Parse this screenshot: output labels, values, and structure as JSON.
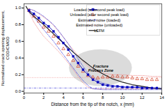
{
  "chart_data": {
    "type": "line",
    "xlabel": "Distance from the tip of the notch, x (mm)",
    "ylabel": "Normalised crack opening displacement,\nCOD/CMOD",
    "xlim": [
      0,
      14
    ],
    "ylim": [
      -0.02,
      1.05
    ],
    "xticks": [
      0,
      2,
      4,
      6,
      8,
      10,
      12,
      14
    ],
    "yticks": [
      {
        "value": 0.0,
        "label": "0.0"
      },
      0.2,
      0.4,
      0.6,
      0.8,
      {
        "value": 1.0,
        "label": "1.0"
      }
    ],
    "grid": false,
    "legend": "upper right",
    "series": [
      {
        "name": "Loaded (at second peak load)",
        "type": "line",
        "color": "#0000bb",
        "marker": "square",
        "line_style": "solid",
        "x": [
          0.5,
          1.0,
          1.5,
          2.0,
          2.5,
          3.0,
          3.5,
          4.0,
          4.5,
          5.0,
          5.5,
          6.0,
          6.5,
          7.0,
          7.5,
          8.0,
          8.5,
          9.0,
          9.5,
          10.0,
          10.5,
          11.0,
          11.5,
          12.0,
          12.5,
          13.0,
          13.5
        ],
        "values": [
          0.97,
          0.93,
          0.88,
          0.82,
          0.78,
          0.72,
          0.65,
          0.58,
          0.5,
          0.42,
          0.34,
          0.26,
          0.2,
          0.14,
          0.11,
          0.08,
          0.07,
          0.06,
          0.06,
          0.05,
          0.05,
          0.05,
          0.05,
          0.04,
          0.04,
          0.04,
          0.04
        ]
      },
      {
        "name": "Unloaded (after second peak load)",
        "type": "scatter",
        "color": "#cc2200",
        "marker": "triangle-open",
        "line_style": "none",
        "x": [
          0.5,
          1.0,
          1.5,
          2.0,
          2.5,
          3.0,
          3.5,
          4.0,
          4.5,
          5.0,
          5.5,
          6.0,
          6.5,
          7.0,
          7.5,
          8.0,
          8.5,
          9.0,
          9.5,
          10.0,
          10.5,
          11.0,
          11.5,
          12.0,
          12.5,
          13.0,
          13.5
        ],
        "values": [
          0.97,
          0.9,
          0.84,
          0.77,
          0.72,
          0.66,
          0.58,
          0.51,
          0.44,
          0.37,
          0.3,
          0.24,
          0.19,
          0.17,
          0.16,
          0.17,
          0.17,
          0.18,
          0.18,
          0.17,
          0.17,
          0.16,
          0.15,
          0.15,
          0.14,
          0.14,
          0.14
        ]
      },
      {
        "name": "Estimated noise (loaded)",
        "type": "band",
        "color": "#4444dd",
        "line_style": "dashdot",
        "x": [
          0.5,
          1.0,
          1.5,
          2.0,
          2.5,
          3.0,
          3.5,
          4.0,
          4.5,
          5.0,
          5.5,
          6.0,
          6.5,
          7.0,
          8.0,
          9.0,
          10.0,
          11.0,
          12.0,
          13.0,
          14.0
        ],
        "upper": [
          0.99,
          0.97,
          0.94,
          0.9,
          0.85,
          0.8,
          0.73,
          0.65,
          0.57,
          0.48,
          0.39,
          0.3,
          0.22,
          0.16,
          0.1,
          0.07,
          0.06,
          0.05,
          0.05,
          0.04,
          0.04
        ],
        "lower": [
          0.95,
          0.89,
          0.82,
          0.74,
          0.67,
          0.6,
          0.52,
          0.44,
          0.36,
          0.28,
          0.2,
          0.13,
          0.07,
          0.03,
          0.02,
          0.02,
          0.02,
          0.02,
          0.02,
          0.02,
          0.02
        ],
        "hline": 0.04
      },
      {
        "name": "Estimated noise (unloaded)",
        "type": "band",
        "color": "#ee8888",
        "line_style": "dotted",
        "x": [
          0.5,
          1.0,
          1.5,
          2.0,
          2.5,
          3.0,
          3.5,
          4.0,
          4.5,
          5.0,
          5.5,
          6.0,
          6.5,
          7.0,
          7.5,
          8.0,
          9.0,
          10.0,
          11.0,
          12.0,
          13.0,
          14.0
        ],
        "upper": [
          0.99,
          0.97,
          0.93,
          0.89,
          0.85,
          0.79,
          0.72,
          0.65,
          0.57,
          0.5,
          0.43,
          0.36,
          0.3,
          0.26,
          0.23,
          0.22,
          0.2,
          0.2,
          0.19,
          0.19,
          0.18,
          0.18
        ],
        "lower": [
          0.95,
          0.83,
          0.74,
          0.66,
          0.6,
          0.54,
          0.48,
          0.41,
          0.34,
          0.26,
          0.18,
          0.1,
          0.05,
          0.03,
          0.03,
          0.03,
          0.03,
          0.03,
          0.03,
          0.03,
          0.03,
          0.03
        ],
        "hline": 0.165
      },
      {
        "name": "LEFM",
        "type": "line",
        "color": "#222222",
        "line_style": "solid",
        "x": [
          0.2,
          0.5,
          1.0,
          2.0,
          3.0,
          4.0,
          5.0,
          6.0,
          7.0,
          8.0,
          9.0,
          10.0,
          11.0,
          12.0,
          13.0,
          14.0
        ],
        "values": [
          1.02,
          0.96,
          0.9,
          0.8,
          0.69,
          0.58,
          0.47,
          0.37,
          0.28,
          0.21,
          0.15,
          0.11,
          0.08,
          0.06,
          0.04,
          0.03
        ]
      }
    ],
    "annotations": [
      {
        "text": "Fracture\nProcess Zone",
        "x": 7.8,
        "y": 0.28,
        "rx": 3.2,
        "ry": 0.22,
        "color": "#b8b8b8"
      }
    ]
  }
}
